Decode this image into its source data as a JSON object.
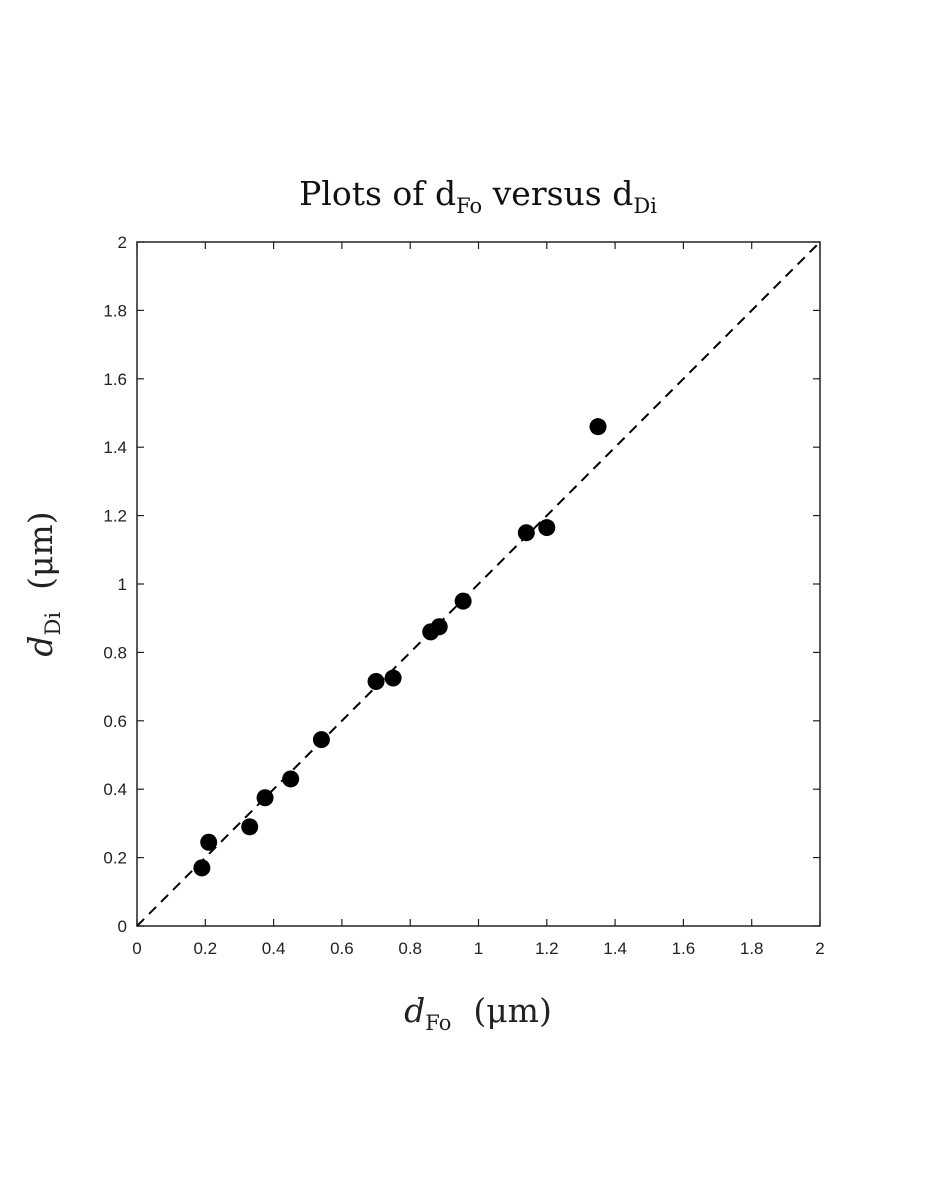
{
  "chart_data": {
    "type": "scatter",
    "title": {
      "text": "Plots of d",
      "sub1": "Fo",
      "mid": " versus d",
      "sub2": "Di"
    },
    "xlabel": {
      "symbol": "d",
      "sub": "Fo",
      "unit": "(μm)"
    },
    "ylabel": {
      "symbol": "d",
      "sub": "Di",
      "unit": "(μm)"
    },
    "xlim": [
      0,
      2
    ],
    "ylim": [
      0,
      2
    ],
    "xticks": [
      "0",
      "0.2",
      "0.4",
      "0.6",
      "0.8",
      "1",
      "1.2",
      "1.4",
      "1.6",
      "1.8",
      "2"
    ],
    "yticks": [
      "0",
      "0.2",
      "0.4",
      "0.6",
      "0.8",
      "1",
      "1.2",
      "1.4",
      "1.6",
      "1.8",
      "2"
    ],
    "grid": false,
    "points": [
      {
        "x": 0.19,
        "y": 0.17
      },
      {
        "x": 0.21,
        "y": 0.245
      },
      {
        "x": 0.33,
        "y": 0.29
      },
      {
        "x": 0.375,
        "y": 0.375
      },
      {
        "x": 0.45,
        "y": 0.43
      },
      {
        "x": 0.54,
        "y": 0.545
      },
      {
        "x": 0.7,
        "y": 0.715
      },
      {
        "x": 0.75,
        "y": 0.725
      },
      {
        "x": 0.86,
        "y": 0.86
      },
      {
        "x": 0.885,
        "y": 0.875
      },
      {
        "x": 0.955,
        "y": 0.95
      },
      {
        "x": 1.14,
        "y": 1.15
      },
      {
        "x": 1.2,
        "y": 1.165
      },
      {
        "x": 1.35,
        "y": 1.46
      }
    ],
    "reference_line": {
      "from": [
        0,
        0
      ],
      "to": [
        2,
        2
      ],
      "style": "dashed"
    },
    "colors": {
      "marker": "#000000",
      "axes": "#222222"
    }
  }
}
